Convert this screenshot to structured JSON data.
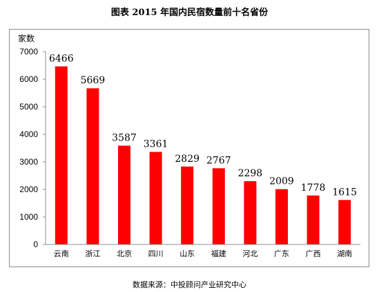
{
  "figure": {
    "title": "图表    2015 年国内民宿数量前十名省份",
    "source": "数据来源：中投顾问产业研究中心"
  },
  "chart_data": {
    "type": "bar",
    "title": "2015 年国内民宿数量前十名省份",
    "ylabel": "家数",
    "xlabel": "",
    "categories": [
      "云南",
      "浙江",
      "北京",
      "四川",
      "山东",
      "福建",
      "河北",
      "广东",
      "广西",
      "湖南"
    ],
    "values": [
      6466,
      5669,
      3587,
      3361,
      2829,
      2767,
      2298,
      2009,
      1778,
      1615
    ],
    "ylim": [
      0,
      7000
    ],
    "yticks": [
      0,
      1000,
      2000,
      3000,
      4000,
      5000,
      6000,
      7000
    ],
    "grid": false,
    "bar_color": "#ff0000",
    "axis_color": "#8c8c8c"
  }
}
